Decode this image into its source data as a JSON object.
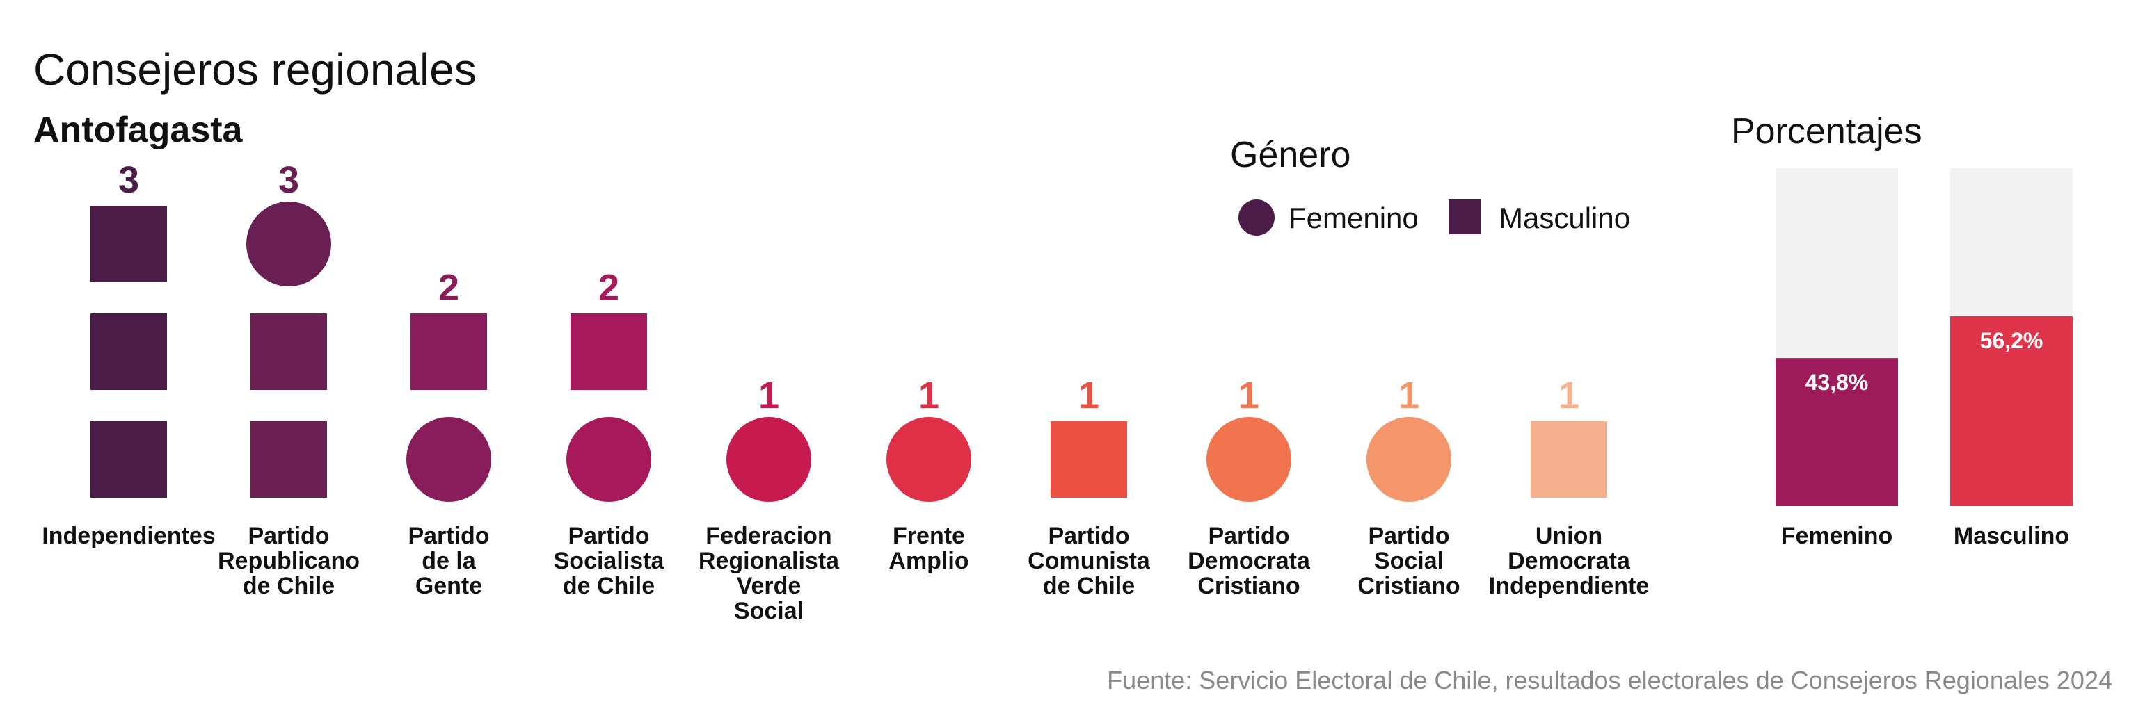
{
  "title": "Consejeros regionales",
  "subtitle": "Antofagasta",
  "legend": {
    "title": "Género",
    "items": [
      {
        "label": "Femenino",
        "shape": "circle",
        "color": "#4a1c47"
      },
      {
        "label": "Masculino",
        "shape": "square",
        "color": "#4a1c47"
      }
    ]
  },
  "source": "Fuente: Servicio Electoral de Chile, resultados electorales de Consejeros Regionales 2024",
  "chart_data": [
    {
      "type": "waffle",
      "categories": [
        {
          "name": "Independientes",
          "label_lines": [
            "Independientes"
          ],
          "total": 3,
          "color": "#4a1c47",
          "members": [
            "masculino",
            "masculino",
            "masculino"
          ]
        },
        {
          "name": "Partido Republicano de Chile",
          "label_lines": [
            "Partido",
            "Republicano",
            "de Chile"
          ],
          "total": 3,
          "color": "#691f52",
          "members": [
            "masculino",
            "masculino",
            "femenino"
          ]
        },
        {
          "name": "Partido de la Gente",
          "label_lines": [
            "Partido",
            "de la",
            "Gente"
          ],
          "total": 2,
          "color": "#891d5b",
          "members": [
            "femenino",
            "masculino"
          ]
        },
        {
          "name": "Partido Socialista de Chile",
          "label_lines": [
            "Partido",
            "Socialista",
            "de Chile"
          ],
          "total": 2,
          "color": "#a8195c",
          "members": [
            "femenino",
            "masculino"
          ]
        },
        {
          "name": "Federacion Regionalista Verde Social",
          "label_lines": [
            "Federacion",
            "Regionalista",
            "Verde",
            "Social"
          ],
          "total": 1,
          "color": "#c71b4f",
          "members": [
            "femenino"
          ]
        },
        {
          "name": "Frente Amplio",
          "label_lines": [
            "Frente",
            "Amplio"
          ],
          "total": 1,
          "color": "#df3047",
          "members": [
            "femenino"
          ]
        },
        {
          "name": "Partido Comunista de Chile",
          "label_lines": [
            "Partido",
            "Comunista",
            "de Chile"
          ],
          "total": 1,
          "color": "#ec5042",
          "members": [
            "masculino"
          ]
        },
        {
          "name": "Partido Democrata Cristiano",
          "label_lines": [
            "Partido",
            "Democrata",
            "Cristiano"
          ],
          "total": 1,
          "color": "#f2744f",
          "members": [
            "femenino"
          ]
        },
        {
          "name": "Partido Social Cristiano",
          "label_lines": [
            "Partido",
            "Social",
            "Cristiano"
          ],
          "total": 1,
          "color": "#f4956a",
          "members": [
            "femenino"
          ]
        },
        {
          "name": "Union Democrata Independiente",
          "label_lines": [
            "Union",
            "Democrata",
            "Independiente"
          ],
          "total": 1,
          "color": "#f6b08e",
          "members": [
            "masculino"
          ]
        }
      ]
    },
    {
      "type": "bar",
      "title": "Porcentajes",
      "categories": [
        "Femenino",
        "Masculino"
      ],
      "values": [
        43.8,
        56.2
      ],
      "value_labels": [
        "43,8%",
        "56,2%"
      ],
      "colors": [
        "#9e1b5b",
        "#e0344a"
      ],
      "track_color": "#f2f2f2",
      "ylim": [
        0,
        100
      ]
    }
  ]
}
